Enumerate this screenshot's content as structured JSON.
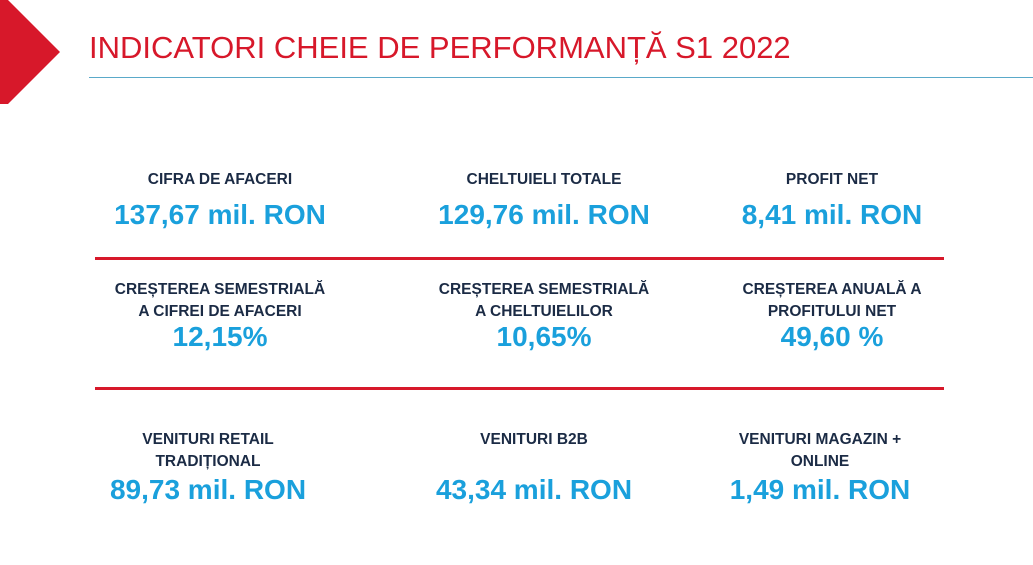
{
  "header": {
    "title": "INDICATORI CHEIE DE PERFORMANȚĂ S1 2022",
    "accent_color": "#d7182a",
    "rule_color": "#5aa9c9"
  },
  "kpis": {
    "row1": [
      {
        "label_lines": [
          "CIFRA DE AFACERI"
        ],
        "value": "137,67 mil. RON"
      },
      {
        "label_lines": [
          "CHELTUIELI TOTALE"
        ],
        "value": "129,76 mil. RON"
      },
      {
        "label_lines": [
          "PROFIT NET"
        ],
        "value": "8,41 mil. RON"
      }
    ],
    "row2": [
      {
        "label_lines": [
          "CREȘTEREA SEMESTRIALĂ",
          "A CIFREI DE AFACERI"
        ],
        "value": "12,15%"
      },
      {
        "label_lines": [
          "CREȘTEREA SEMESTRIALĂ",
          "A CHELTUIELILOR"
        ],
        "value": "10,65%"
      },
      {
        "label_lines": [
          "CREȘTEREA ANUALĂ A",
          "PROFITULUI NET"
        ],
        "value": "49,60 %"
      }
    ],
    "row3": [
      {
        "label_lines": [
          "VENITURI RETAIL",
          "TRADIȚIONAL"
        ],
        "value": "89,73 mil. RON"
      },
      {
        "label_lines": [
          "VENITURI B2B"
        ],
        "value": "43,34 mil. RON"
      },
      {
        "label_lines": [
          "VENITURI MAGAZIN +",
          "ONLINE"
        ],
        "value": "1,49 mil. RON"
      }
    ]
  },
  "colors": {
    "label": "#1b2b45",
    "value": "#1aa0dc",
    "divider": "#d7182a"
  }
}
